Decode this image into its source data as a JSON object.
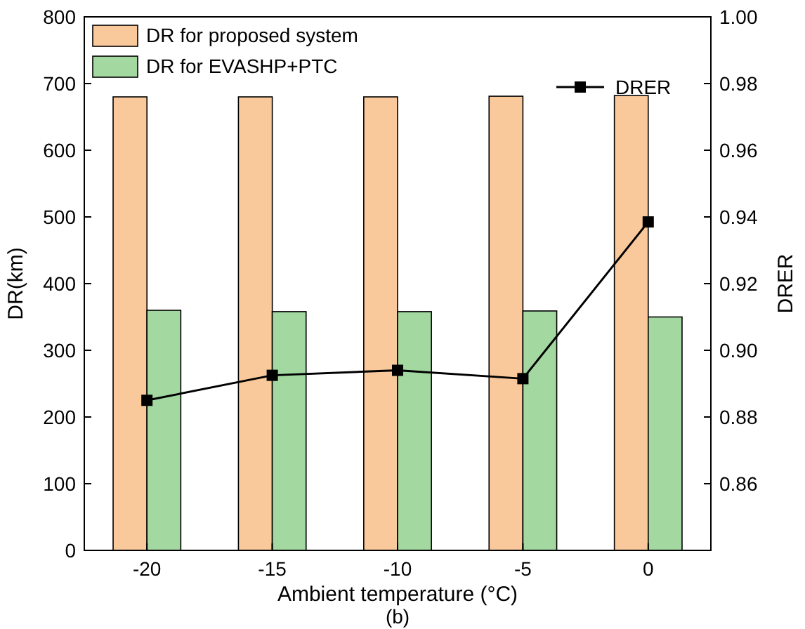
{
  "chart_data": {
    "type": "bar",
    "categories": [
      "-20",
      "-15",
      "-10",
      "-5",
      "0"
    ],
    "xlabel": "Ambient temperature (°C)",
    "ylabel": "DR(km)",
    "y2label": "DRER",
    "ylim": [
      0,
      800
    ],
    "yticks": [
      0,
      100,
      200,
      300,
      400,
      500,
      600,
      700,
      800
    ],
    "y2lim": [
      0.84,
      1.0
    ],
    "y2ticks": [
      {
        "value": 0.84,
        "label": null
      },
      0.86,
      0.88,
      {
        "value": 0.9,
        "label": "0.90"
      },
      0.92,
      0.94,
      0.96,
      0.98,
      {
        "value": 1.0,
        "label": "1.00"
      }
    ],
    "legend": "top",
    "marker": "square",
    "annotations": [
      "(b)"
    ],
    "series": [
      {
        "name": "DR for proposed system",
        "color": "#f9c89b",
        "values": [
          680,
          680,
          680,
          681,
          682
        ]
      },
      {
        "name": "DR for EVASHP+PTC",
        "color": "#a3d8a0",
        "values": [
          360,
          358,
          358,
          359,
          350
        ]
      },
      {
        "name": "DRER",
        "type": "line",
        "axis": "y2",
        "color": "#000000",
        "values": [
          0.885,
          0.8925,
          0.894,
          0.8915,
          0.9385
        ]
      }
    ]
  }
}
